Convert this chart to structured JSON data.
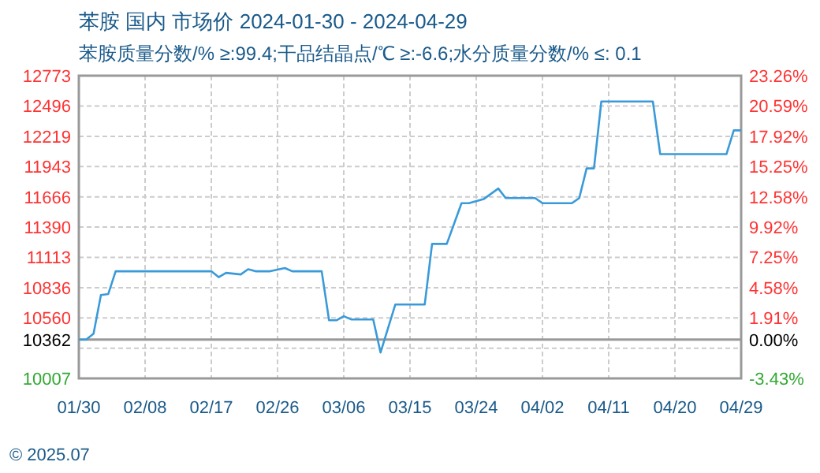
{
  "chart_data": {
    "type": "line",
    "title": "苯胺 国内 市场价 2024-01-30 - 2024-04-29",
    "subtitle": "苯胺质量分数/% ≥:99.4;干品结晶点/℃  ≥:-6.6;水分质量分数/%  ≤: 0.1",
    "x": [
      "2024-01-30",
      "2024-01-31",
      "2024-02-01",
      "2024-02-02",
      "2024-02-03",
      "2024-02-04",
      "2024-02-17",
      "2024-02-18",
      "2024-02-19",
      "2024-02-21",
      "2024-02-22",
      "2024-02-23",
      "2024-02-25",
      "2024-02-27",
      "2024-02-28",
      "2024-03-03",
      "2024-03-04",
      "2024-03-05",
      "2024-03-06",
      "2024-03-07",
      "2024-03-10",
      "2024-03-11",
      "2024-03-13",
      "2024-03-17",
      "2024-03-18",
      "2024-03-20",
      "2024-03-22",
      "2024-03-23",
      "2024-03-25",
      "2024-03-27",
      "2024-03-28",
      "2024-04-01",
      "2024-04-02",
      "2024-04-06",
      "2024-04-07",
      "2024-04-08",
      "2024-04-09",
      "2024-04-10",
      "2024-04-17",
      "2024-04-18",
      "2024-04-27",
      "2024-04-28",
      "2024-04-29"
    ],
    "series": [
      {
        "color": "#3a9ad9",
        "values": [
          10362,
          10362,
          10416,
          10769,
          10778,
          10986,
          10986,
          10932,
          10971,
          10957,
          11005,
          10986,
          10986,
          11015,
          10986,
          10986,
          10538,
          10538,
          10575,
          10546,
          10546,
          10243,
          10682,
          10682,
          11236,
          11236,
          11608,
          11608,
          11645,
          11742,
          11655,
          11655,
          11608,
          11608,
          11655,
          11926,
          11926,
          12537,
          12537,
          12056,
          12056,
          12273,
          12273
        ]
      }
    ],
    "xlim": [
      "2024-01-30",
      "2024-04-29"
    ],
    "xticks": [
      {
        "value": "2024-01-30",
        "label": "01/30"
      },
      {
        "value": "2024-02-08",
        "label": "02/08"
      },
      {
        "value": "2024-02-17",
        "label": "02/17"
      },
      {
        "value": "2024-02-26",
        "label": "02/26"
      },
      {
        "value": "2024-03-06",
        "label": "03/06"
      },
      {
        "value": "2024-03-15",
        "label": "03/15"
      },
      {
        "value": "2024-03-24",
        "label": "03/24"
      },
      {
        "value": "2024-04-02",
        "label": "04/02"
      },
      {
        "value": "2024-04-11",
        "label": "04/11"
      },
      {
        "value": "2024-04-20",
        "label": "04/20"
      },
      {
        "value": "2024-04-29",
        "label": "04/29"
      }
    ],
    "ylim": [
      10007,
      12773
    ],
    "yticks": [
      10007,
      {
        "value": 10283,
        "label": null
      },
      10362,
      10560,
      10836,
      11113,
      11390,
      11666,
      11943,
      12219,
      12496,
      12773
    ],
    "y2lim": [
      -3.43,
      23.26
    ],
    "y2ticks": [
      {
        "value": -3.43,
        "label": "-3.43%"
      },
      {
        "value": 0,
        "label": "0.00%"
      },
      {
        "value": 1.91,
        "label": "1.91%"
      },
      {
        "value": 4.58,
        "label": "4.58%"
      },
      {
        "value": 7.25,
        "label": "7.25%"
      },
      {
        "value": 9.92,
        "label": "9.92%"
      },
      {
        "value": 12.58,
        "label": "12.58%"
      },
      {
        "value": 15.25,
        "label": "15.25%"
      },
      {
        "value": 17.92,
        "label": "17.92%"
      },
      {
        "value": 20.59,
        "label": "20.59%"
      },
      {
        "value": 23.26,
        "label": "23.26%"
      }
    ],
    "ref_lines": [
      {
        "axis": "y",
        "value": 10362,
        "color": "#999999"
      }
    ],
    "grid": true,
    "annotations": [
      "© 2025.07"
    ]
  }
}
